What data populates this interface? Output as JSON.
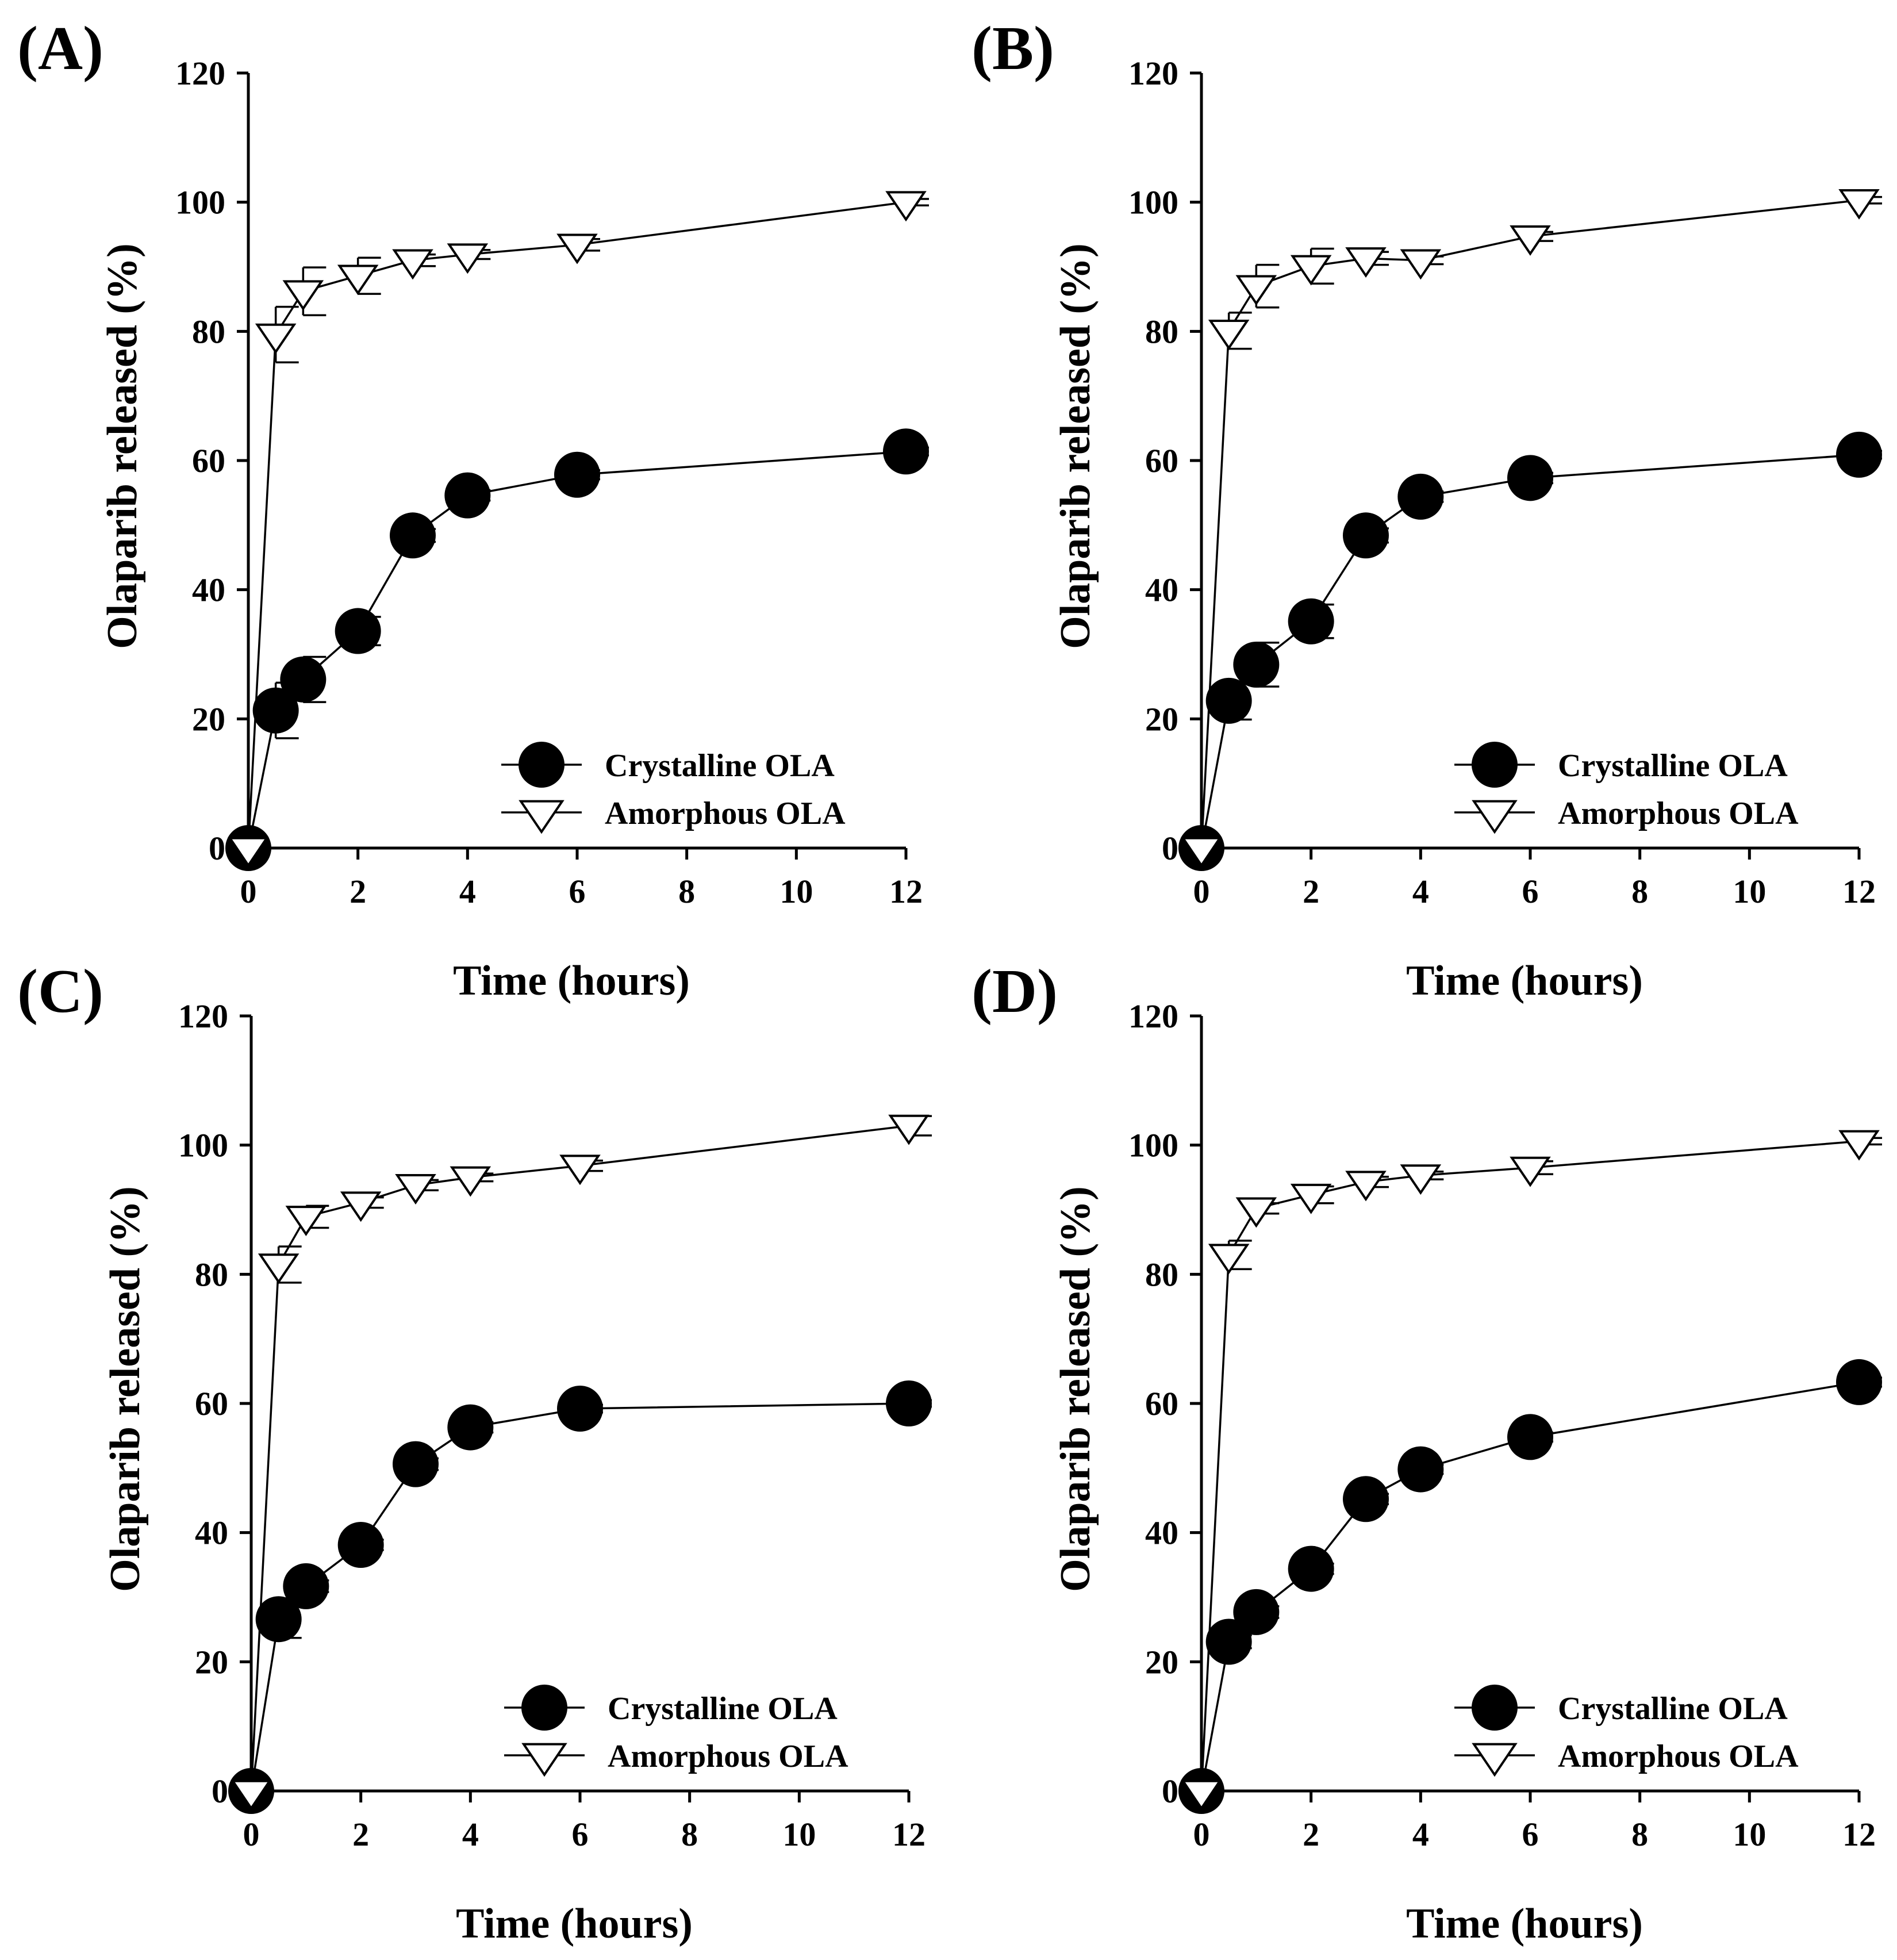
{
  "colors": {
    "foreground": "#000000",
    "background": "#ffffff"
  },
  "chart_data": [
    {
      "panel_label": "(A)",
      "type": "line",
      "xlabel": "Time (hours)",
      "ylabel": "Olaparib released (%)",
      "xlim": [
        0,
        12
      ],
      "ylim": [
        0,
        120
      ],
      "xticks": [
        "0",
        "2",
        "4",
        "6",
        "8",
        "10",
        "12"
      ],
      "yticks": [
        "0",
        "20",
        "40",
        "60",
        "80",
        "100",
        "120"
      ],
      "x": [
        0,
        0.5,
        1,
        2,
        3,
        4,
        6,
        12
      ],
      "legend_position": "bottom-right",
      "series": [
        {
          "name": "Crystalline OLA",
          "marker": "filled-circle",
          "values": [
            0,
            21.3,
            26.1,
            33.6,
            48.4,
            54.6,
            57.8,
            61.4
          ],
          "errors": [
            0,
            4.3,
            3.5,
            2.2,
            1.0,
            0.8,
            0.7,
            0.6
          ]
        },
        {
          "name": "Amorphous OLA",
          "marker": "open-triangle-down",
          "values": [
            0,
            79.5,
            86.2,
            88.6,
            91.0,
            91.9,
            93.4,
            100.0
          ],
          "errors": [
            0,
            4.3,
            3.7,
            2.8,
            0.9,
            0.7,
            0.9,
            0.5
          ]
        }
      ]
    },
    {
      "panel_label": "(B)",
      "type": "line",
      "xlabel": "Time (hours)",
      "ylabel": "Olaparib released (%)",
      "xlim": [
        0,
        12
      ],
      "ylim": [
        0,
        120
      ],
      "xticks": [
        "0",
        "2",
        "4",
        "6",
        "8",
        "10",
        "12"
      ],
      "yticks": [
        "0",
        "20",
        "40",
        "60",
        "80",
        "100",
        "120"
      ],
      "x": [
        0,
        0.5,
        1,
        2,
        3,
        4,
        6,
        12
      ],
      "legend_position": "bottom-right",
      "series": [
        {
          "name": "Crystalline OLA",
          "marker": "filled-circle",
          "values": [
            0,
            22.8,
            28.4,
            35.1,
            48.4,
            54.4,
            57.3,
            60.9
          ],
          "errors": [
            0,
            2.9,
            3.4,
            2.6,
            1.1,
            0.8,
            0.8,
            0.6
          ]
        },
        {
          "name": "Amorphous OLA",
          "marker": "open-triangle-down",
          "values": [
            0,
            80.1,
            87.0,
            90.1,
            91.3,
            91.0,
            94.7,
            100.3
          ],
          "errors": [
            0,
            2.8,
            3.3,
            2.7,
            1.0,
            0.6,
            0.7,
            0.5
          ]
        }
      ]
    },
    {
      "panel_label": "(C)",
      "type": "line",
      "xlabel": "Time (hours)",
      "ylabel": "Olaparib released (%)",
      "xlim": [
        0,
        12
      ],
      "ylim": [
        0,
        120
      ],
      "xticks": [
        "0",
        "2",
        "4",
        "6",
        "8",
        "10",
        "12"
      ],
      "yticks": [
        "0",
        "20",
        "40",
        "60",
        "80",
        "100",
        "120"
      ],
      "x": [
        0,
        0.5,
        1,
        2,
        3,
        4,
        6,
        12
      ],
      "legend_position": "bottom-right",
      "series": [
        {
          "name": "Crystalline OLA",
          "marker": "filled-circle",
          "values": [
            0,
            26.6,
            31.7,
            38.1,
            50.6,
            56.3,
            59.2,
            60.0
          ],
          "errors": [
            0,
            2.9,
            0.9,
            0.8,
            0.9,
            0.8,
            0.6,
            0.5
          ]
        },
        {
          "name": "Amorphous OLA",
          "marker": "open-triangle-down",
          "values": [
            0,
            81.5,
            88.9,
            91.1,
            93.8,
            95.0,
            96.8,
            103.0
          ],
          "errors": [
            0,
            2.8,
            1.7,
            0.8,
            0.8,
            0.6,
            0.8,
            1.5
          ]
        }
      ]
    },
    {
      "panel_label": "(D)",
      "type": "line",
      "xlabel": "Time (hours)",
      "ylabel": "Olaparib released (%)",
      "xlim": [
        0,
        12
      ],
      "ylim": [
        0,
        120
      ],
      "xticks": [
        "0",
        "2",
        "4",
        "6",
        "8",
        "10",
        "12"
      ],
      "yticks": [
        "0",
        "20",
        "40",
        "60",
        "80",
        "100",
        "120"
      ],
      "x": [
        0,
        0.5,
        1,
        2,
        3,
        4,
        6,
        12
      ],
      "legend_position": "bottom-right",
      "series": [
        {
          "name": "Crystalline OLA",
          "marker": "filled-circle",
          "values": [
            0,
            23.1,
            27.7,
            34.4,
            45.2,
            49.8,
            54.8,
            63.3
          ],
          "errors": [
            0,
            1.0,
            0.9,
            0.8,
            0.8,
            0.7,
            0.7,
            0.7
          ]
        },
        {
          "name": "Amorphous OLA",
          "marker": "open-triangle-down",
          "values": [
            0,
            83.0,
            90.2,
            92.3,
            94.3,
            95.3,
            96.5,
            100.6
          ],
          "errors": [
            0,
            2.2,
            0.8,
            1.3,
            0.8,
            0.6,
            1.0,
            0.5
          ]
        }
      ]
    }
  ]
}
